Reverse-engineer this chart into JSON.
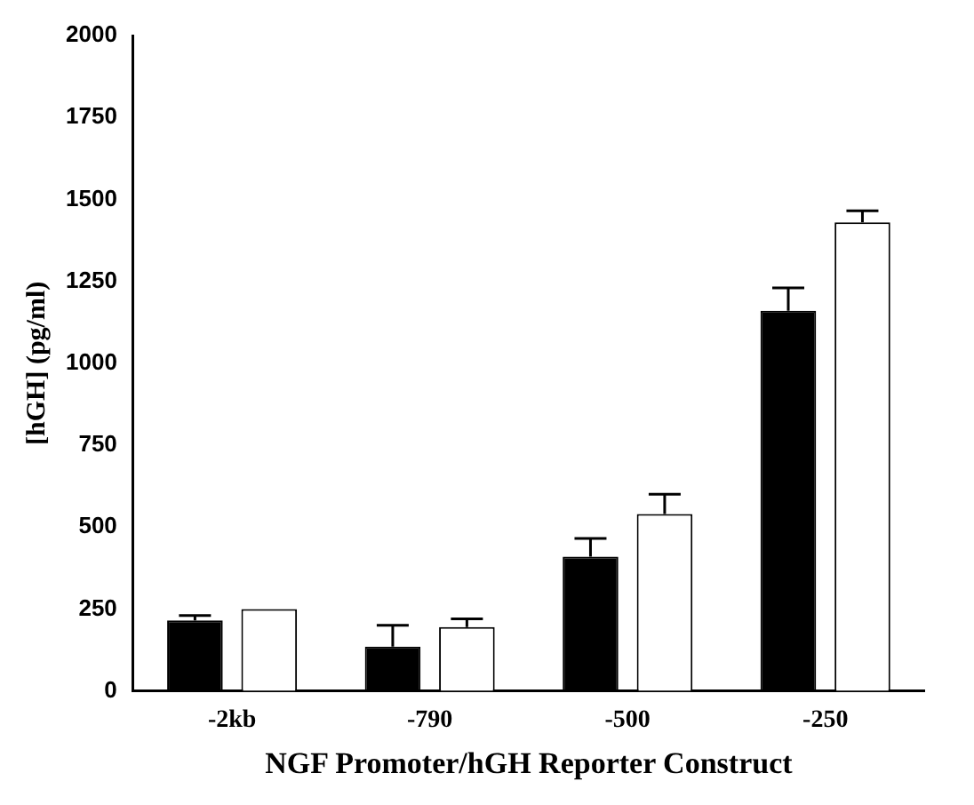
{
  "chart_data": {
    "type": "bar",
    "xlabel": "NGF Promoter/hGH Reporter Construct",
    "ylabel": "[hGH] (pg/ml)",
    "categories": [
      "-2kb",
      "-790",
      "-500",
      "-250"
    ],
    "series": [
      {
        "color": "#000000",
        "values": [
          215,
          135,
          410,
          1160
        ],
        "errors": [
          [
            215,
            230
          ],
          [
            135,
            200
          ],
          [
            410,
            465
          ],
          [
            1160,
            1230
          ]
        ]
      },
      {
        "color": "#ffffff",
        "values": [
          250,
          195,
          540,
          1430
        ],
        "errors": [
          null,
          [
            195,
            220
          ],
          [
            540,
            600
          ],
          [
            1430,
            1465
          ]
        ]
      }
    ],
    "ylim": [
      0,
      2000
    ],
    "yticks": [
      0,
      250,
      500,
      750,
      1000,
      1250,
      1500,
      1750,
      2000
    ],
    "grid": false,
    "legend": false
  }
}
